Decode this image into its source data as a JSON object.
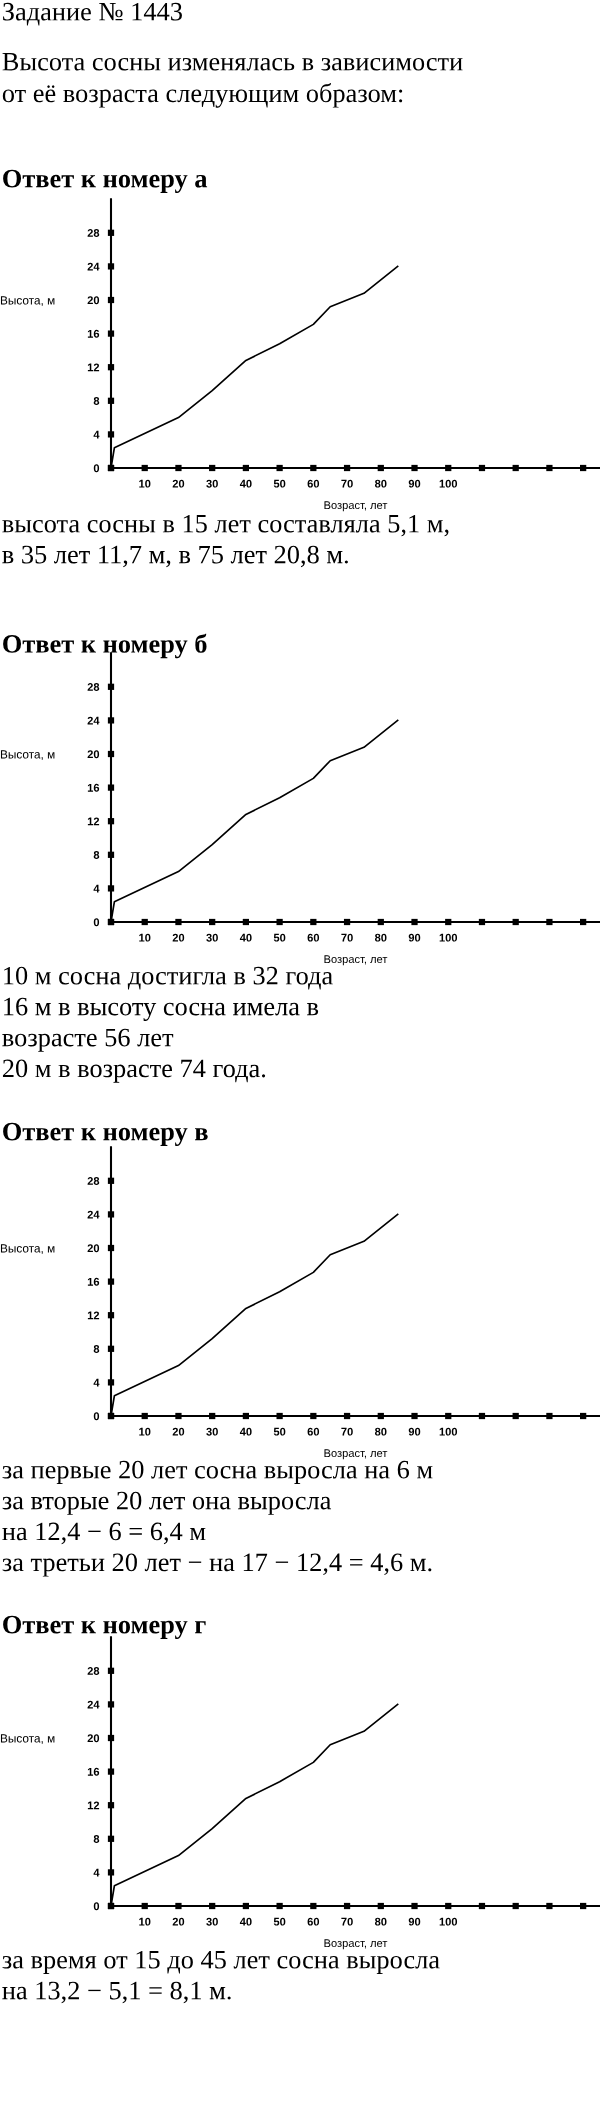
{
  "chart_data": [
    {
      "type": "line",
      "title": "Ответ к номеру а",
      "xlabel": "Возраст, лет",
      "ylabel": "Высота, м",
      "x": [
        0,
        1,
        20,
        30,
        40,
        50,
        60,
        65,
        75,
        85
      ],
      "series": [
        {
          "color": "#000000",
          "values": [
            0,
            2.4,
            6,
            9.2,
            12.8,
            14.8,
            17.1,
            19.2,
            20.8,
            24
          ]
        }
      ],
      "xlim": [
        0,
        145
      ],
      "ylim": [
        0,
        32
      ],
      "xticks": [
        {
          "value": 0,
          "label": null
        },
        10,
        20,
        30,
        40,
        50,
        60,
        70,
        80,
        90,
        100,
        {
          "value": 110,
          "label": null
        },
        {
          "value": 120,
          "label": null
        },
        {
          "value": 130,
          "label": null
        },
        {
          "value": 140,
          "label": null
        }
      ],
      "yticks": [
        0,
        4,
        8,
        12,
        16,
        20,
        24,
        28
      ],
      "grid": false,
      "marker": "none",
      "line_style": "solid",
      "annotations": [
        "Задание № 1443",
        "Высота сосны изменялась в зависимости\nот её возраста следующим образом:",
        "высота сосны в 15 лет составляла 5,1 м,\nв 35 лет 11,7 м, в 75 лет 20,8 м."
      ]
    },
    {
      "type": "line",
      "title": "Ответ к номеру б",
      "xlabel": "Возраст, лет",
      "ylabel": "Высота, м",
      "x": [
        0,
        1,
        20,
        30,
        40,
        50,
        60,
        65,
        75,
        85
      ],
      "series": [
        {
          "color": "#000000",
          "values": [
            0,
            2.4,
            6,
            9.2,
            12.8,
            14.8,
            17.1,
            19.2,
            20.8,
            24
          ]
        }
      ],
      "xlim": [
        0,
        145
      ],
      "ylim": [
        0,
        32
      ],
      "xticks": [
        {
          "value": 0,
          "label": null
        },
        10,
        20,
        30,
        40,
        50,
        60,
        70,
        80,
        90,
        100,
        {
          "value": 110,
          "label": null
        },
        {
          "value": 120,
          "label": null
        },
        {
          "value": 130,
          "label": null
        },
        {
          "value": 140,
          "label": null
        }
      ],
      "yticks": [
        0,
        4,
        8,
        12,
        16,
        20,
        24,
        28
      ],
      "grid": false,
      "marker": "none",
      "line_style": "solid",
      "annotations": [
        "10 м сосна достигла в 32 года\n16 м в высоту сосна имела в\nвозрасте 56 лет\n20 м в возрасте 74 года."
      ]
    },
    {
      "type": "line",
      "title": "Ответ к номеру в",
      "xlabel": "Возраст, лет",
      "ylabel": "Высота, м",
      "x": [
        0,
        1,
        20,
        30,
        40,
        50,
        60,
        65,
        75,
        85
      ],
      "series": [
        {
          "color": "#000000",
          "values": [
            0,
            2.4,
            6,
            9.2,
            12.8,
            14.8,
            17.1,
            19.2,
            20.8,
            24
          ]
        }
      ],
      "xlim": [
        0,
        145
      ],
      "ylim": [
        0,
        32
      ],
      "xticks": [
        {
          "value": 0,
          "label": null
        },
        10,
        20,
        30,
        40,
        50,
        60,
        70,
        80,
        90,
        100,
        {
          "value": 110,
          "label": null
        },
        {
          "value": 120,
          "label": null
        },
        {
          "value": 130,
          "label": null
        },
        {
          "value": 140,
          "label": null
        }
      ],
      "yticks": [
        0,
        4,
        8,
        12,
        16,
        20,
        24,
        28
      ],
      "grid": false,
      "marker": "none",
      "line_style": "solid",
      "annotations": [
        "за первые 20 лет сосна выросла на 6 м\nза вторые 20 лет она выросла\nна 12,4 − 6 = 6,4 м\nза третьи 20 лет − на 17 − 12,4 = 4,6 м."
      ]
    },
    {
      "type": "line",
      "title": "Ответ к номеру г",
      "xlabel": "Возраст, лет",
      "ylabel": "Высота, м",
      "x": [
        0,
        1,
        20,
        30,
        40,
        50,
        60,
        65,
        75,
        85
      ],
      "series": [
        {
          "color": "#000000",
          "values": [
            0,
            2.4,
            6,
            9.2,
            12.8,
            14.8,
            17.1,
            19.2,
            20.8,
            24
          ]
        }
      ],
      "xlim": [
        0,
        145
      ],
      "ylim": [
        0,
        32
      ],
      "xticks": [
        {
          "value": 0,
          "label": null
        },
        10,
        20,
        30,
        40,
        50,
        60,
        70,
        80,
        90,
        100,
        {
          "value": 110,
          "label": null
        },
        {
          "value": 120,
          "label": null
        },
        {
          "value": 130,
          "label": null
        },
        {
          "value": 140,
          "label": null
        }
      ],
      "yticks": [
        0,
        4,
        8,
        12,
        16,
        20,
        24,
        28
      ],
      "grid": false,
      "marker": "none",
      "line_style": "solid",
      "annotations": [
        "за время от 15 до 45 лет сосна выросла\nна 13,2 − 5,1 = 8,1 м."
      ]
    }
  ]
}
